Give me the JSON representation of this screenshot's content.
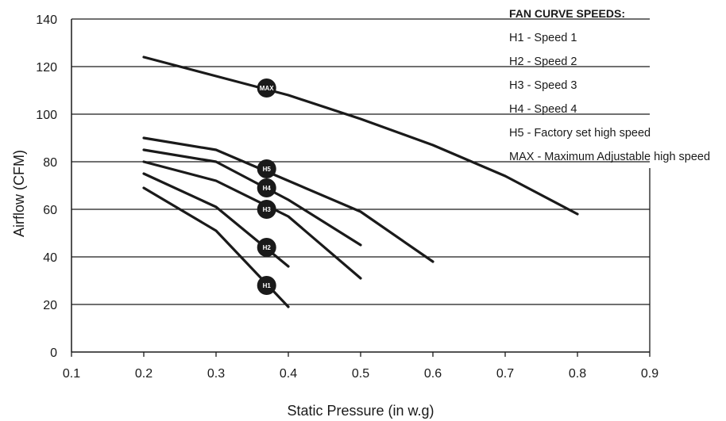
{
  "chart_data": {
    "type": "line",
    "xlabel": "Static Pressure (in w.g)",
    "ylabel": "Airflow (CFM)",
    "xlim": [
      0.1,
      0.9
    ],
    "ylim": [
      0,
      140
    ],
    "xticks": [
      "0.1",
      "0.2",
      "0.3",
      "0.4",
      "0.5",
      "0.6",
      "0.7",
      "0.8",
      "0.9"
    ],
    "yticks": [
      "0",
      "20",
      "40",
      "60",
      "80",
      "100",
      "120",
      "140"
    ],
    "grid": "horizontal",
    "legend": {
      "title": "FAN CURVE SPEEDS:",
      "entries": [
        "H1 - Speed 1",
        "H2 - Speed 2",
        "H3 - Speed 3",
        "H4 - Speed 4",
        "H5 - Factory set high speed",
        "MAX - Maximum Adjustable high speed"
      ],
      "placement": "top-right"
    },
    "series": [
      {
        "name": "H1",
        "x": [
          0.2,
          0.3,
          0.4
        ],
        "y": [
          69,
          51,
          19
        ],
        "marker_x": 0.37,
        "marker_y": 28
      },
      {
        "name": "H2",
        "x": [
          0.2,
          0.3,
          0.4
        ],
        "y": [
          75,
          61,
          36
        ],
        "marker_x": 0.37,
        "marker_y": 44
      },
      {
        "name": "H3",
        "x": [
          0.2,
          0.3,
          0.4,
          0.5
        ],
        "y": [
          80,
          72,
          57,
          31
        ],
        "marker_x": 0.37,
        "marker_y": 60
      },
      {
        "name": "H4",
        "x": [
          0.2,
          0.3,
          0.4,
          0.5
        ],
        "y": [
          85,
          80,
          64,
          45
        ],
        "marker_x": 0.37,
        "marker_y": 69
      },
      {
        "name": "H5",
        "x": [
          0.2,
          0.3,
          0.4,
          0.5,
          0.6
        ],
        "y": [
          90,
          85,
          72,
          59,
          38
        ],
        "marker_x": 0.37,
        "marker_y": 77
      },
      {
        "name": "MAX",
        "x": [
          0.2,
          0.3,
          0.4,
          0.5,
          0.6,
          0.7,
          0.8
        ],
        "y": [
          124,
          116,
          108,
          98,
          87,
          74,
          58
        ],
        "marker_x": 0.37,
        "marker_y": 111
      }
    ]
  }
}
